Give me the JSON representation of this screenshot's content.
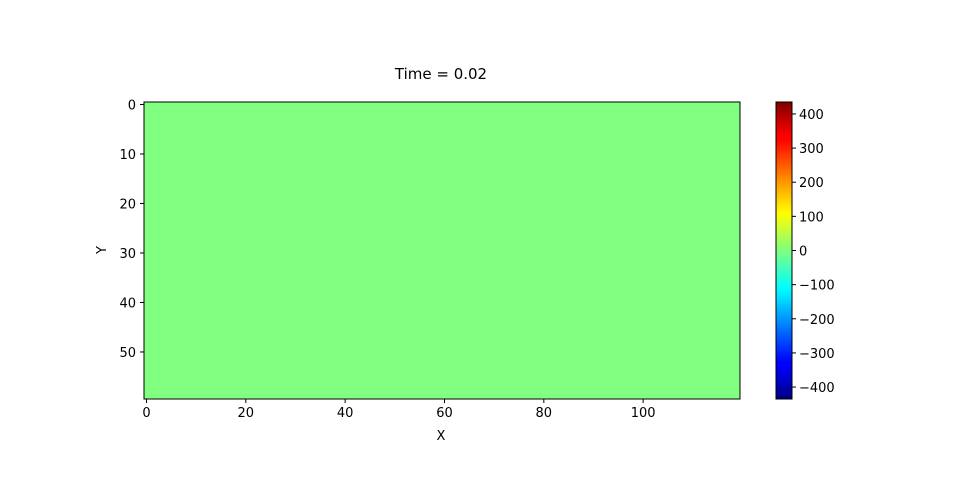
{
  "chart_data": {
    "type": "heatmap",
    "title": "Time = 0.02",
    "xlabel": "X",
    "ylabel": "Y",
    "xlim": [
      -0.5,
      119.5
    ],
    "ylim": [
      59.5,
      -0.5
    ],
    "x_ticks": [
      0,
      20,
      40,
      60,
      80,
      100
    ],
    "y_ticks": [
      0,
      10,
      20,
      30,
      40,
      50
    ],
    "grid": false,
    "colormap": "jet",
    "field_value": 0,
    "field_color": "#80ff80",
    "colorbar": {
      "range": [
        -435,
        435
      ],
      "ticks": [
        -400,
        -300,
        -200,
        -100,
        0,
        100,
        200,
        300,
        400
      ],
      "tick_labels": [
        "−400",
        "−300",
        "−200",
        "−100",
        "0",
        "100",
        "200",
        "300",
        "400"
      ],
      "colors": [
        "#00007f",
        "#0000ff",
        "#007fff",
        "#00ffff",
        "#7fff7f",
        "#ffff00",
        "#ff7f00",
        "#ff0000",
        "#7f0000"
      ]
    }
  }
}
